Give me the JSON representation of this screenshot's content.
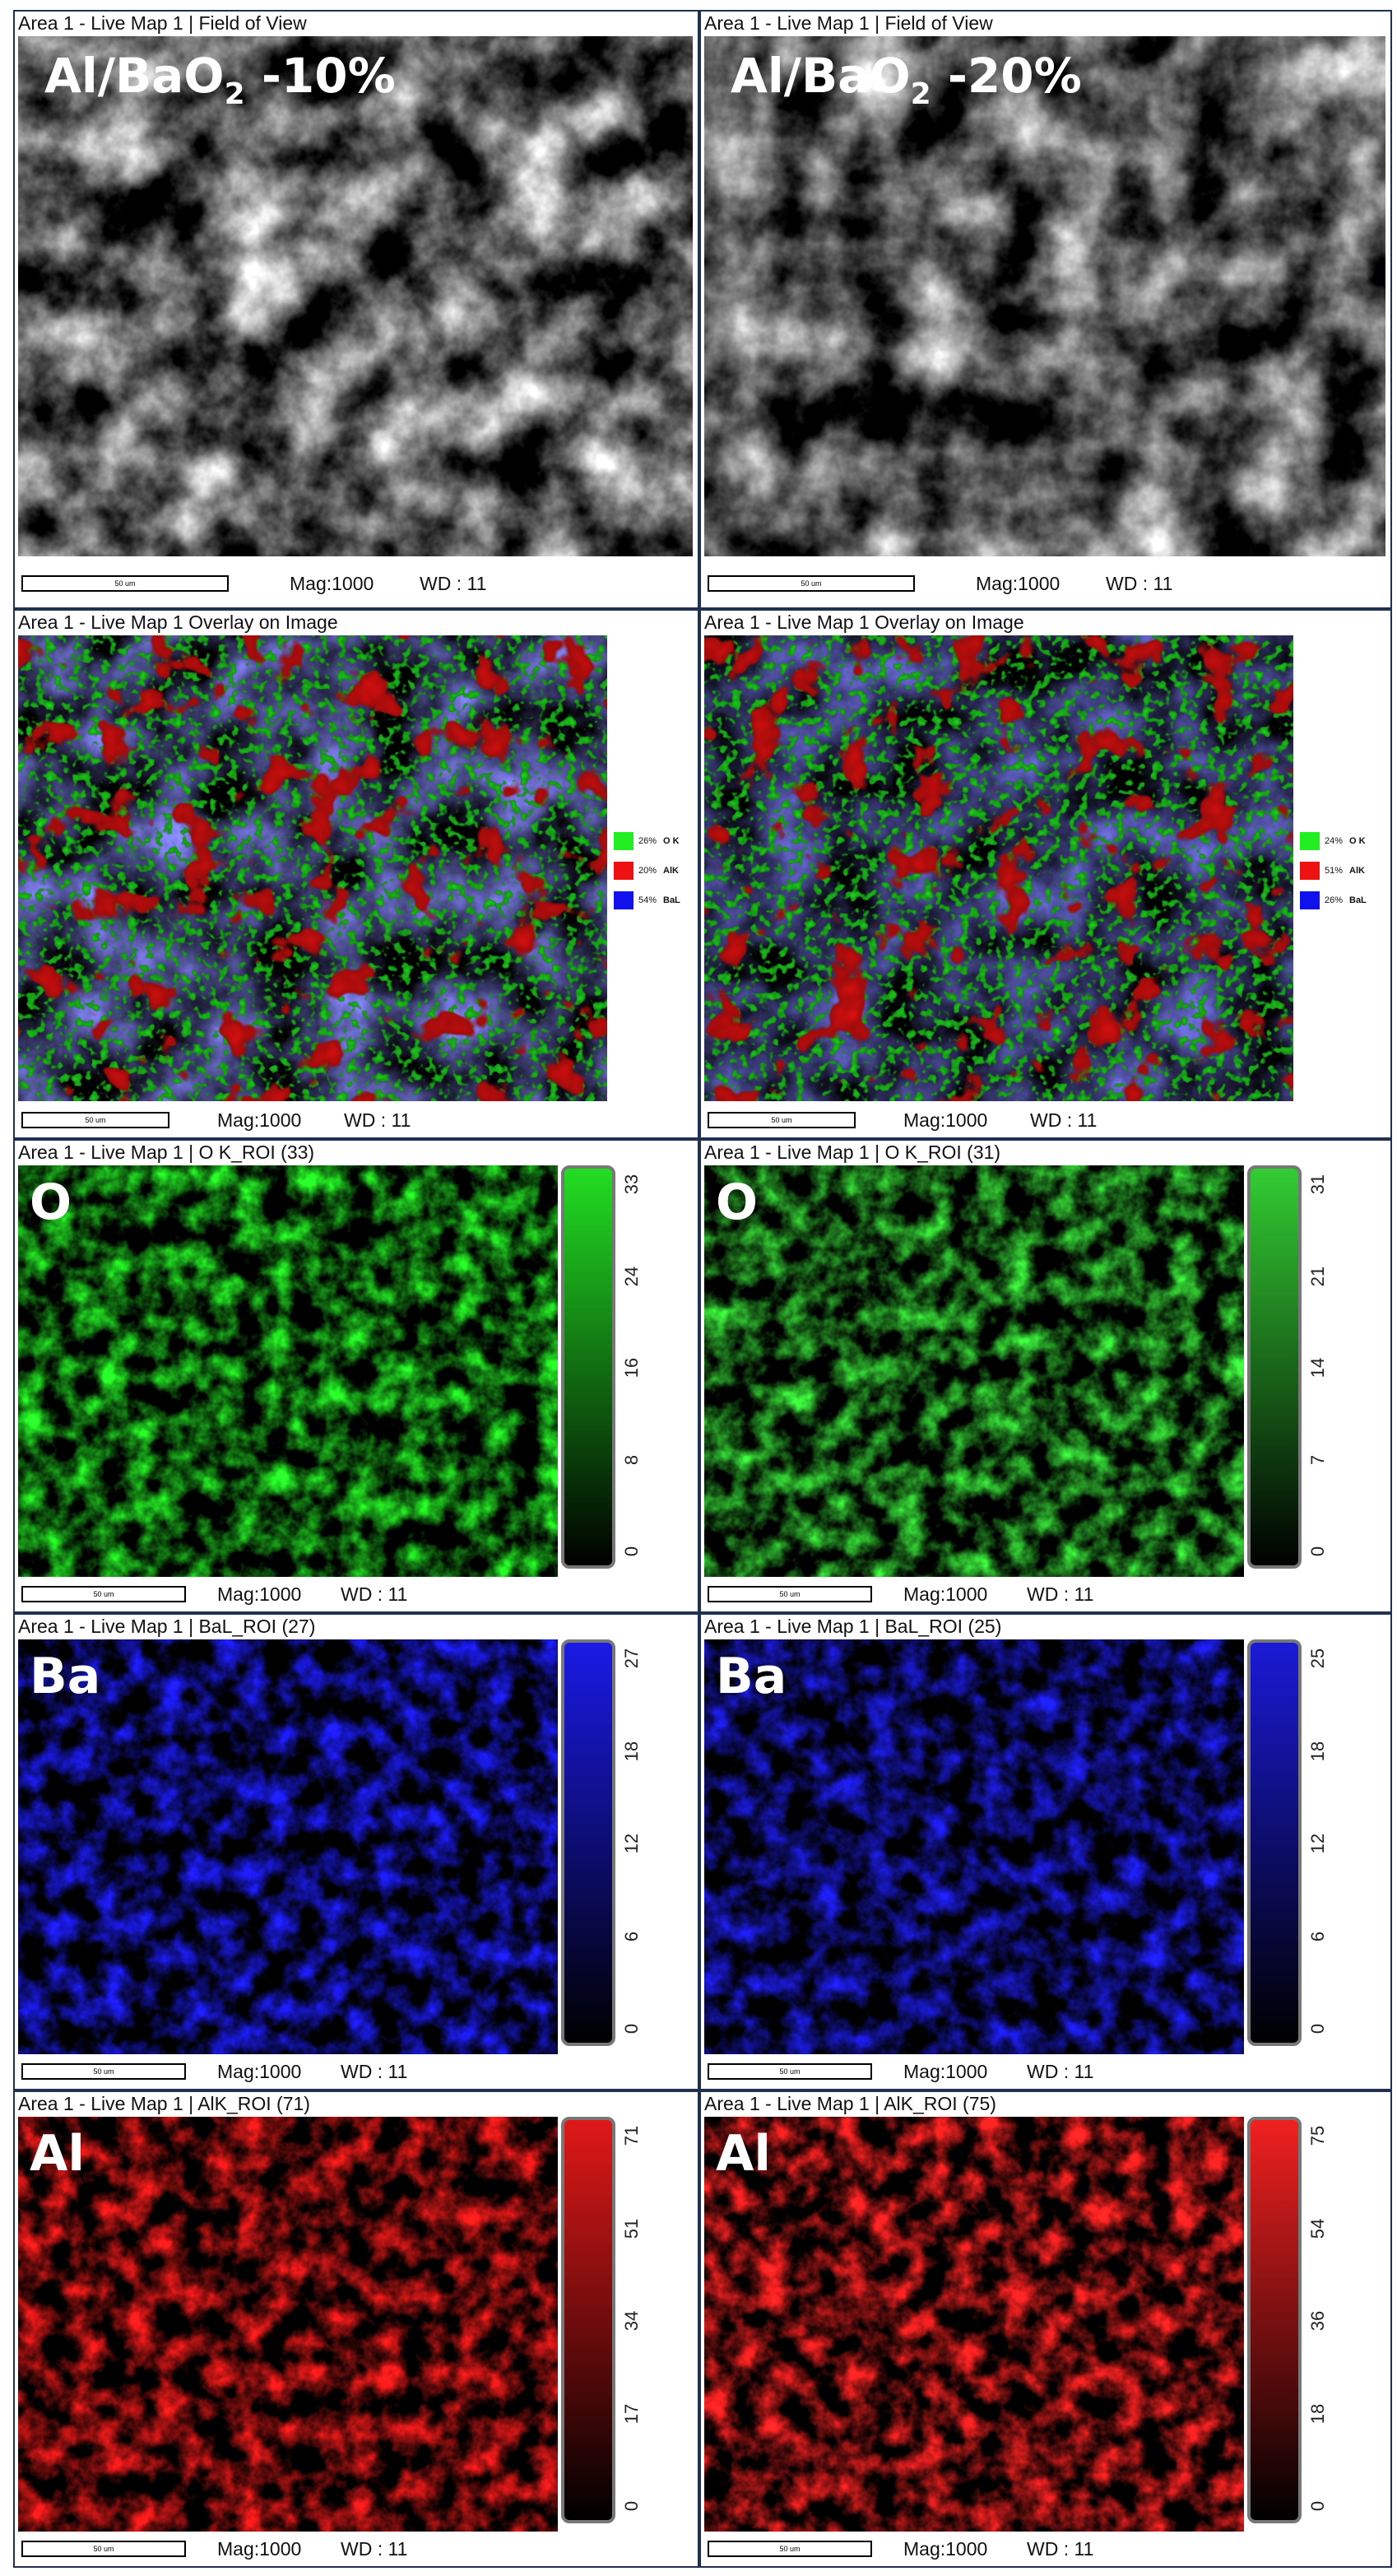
{
  "panels": [
    {
      "kind": "fov",
      "header": "Area 1 - Live Map 1 | Field of View",
      "label": {
        "main": "Al/BaO",
        "sub": "2",
        "tail": " -10%"
      },
      "color": "#d2d2d2",
      "scale_bar": "50 um",
      "mag": "Mag:1000",
      "wd": "WD : 11"
    },
    {
      "kind": "fov",
      "header": "Area 1 - Live Map 1 | Field of View",
      "label": {
        "main": "Al/BaO",
        "sub": "2",
        "tail": " -20%"
      },
      "color": "#bdbdbd",
      "scale_bar": "50 um",
      "mag": "Mag:1000",
      "wd": "WD : 11"
    },
    {
      "kind": "overlay",
      "header": "Area 1 - Live Map 1 Overlay on Image",
      "color": "#6a6ac8",
      "scale_bar": "50 um",
      "mag": "Mag:1000",
      "wd": "WD : 11",
      "legend": [
        {
          "pct": "26%",
          "name": "O K",
          "color": "#22ee22"
        },
        {
          "pct": "20%",
          "name": "AlK",
          "color": "#ee1111"
        },
        {
          "pct": "54%",
          "name": "BaL",
          "color": "#1111ee"
        }
      ]
    },
    {
      "kind": "overlay",
      "header": "Area 1 - Live Map 1 Overlay on Image",
      "color": "#5a5ab8",
      "scale_bar": "50 um",
      "mag": "Mag:1000",
      "wd": "WD : 11",
      "legend": [
        {
          "pct": "24%",
          "name": "O K",
          "color": "#22ee22"
        },
        {
          "pct": "51%",
          "name": "AlK",
          "color": "#ee1111"
        },
        {
          "pct": "26%",
          "name": "BaL",
          "color": "#1111ee"
        }
      ]
    },
    {
      "kind": "map",
      "header": "Area 1 - Live Map 1 | O K_ROI (33)",
      "label": "O",
      "color": "#22dd22",
      "scale_bar": "50 um",
      "mag": "Mag:1000",
      "wd": "WD : 11",
      "colorbar": {
        "ticks": [
          33,
          24,
          16,
          8,
          0
        ]
      }
    },
    {
      "kind": "map",
      "header": "Area 1 - Live Map 1 | O K_ROI (31)",
      "label": "O",
      "color": "#33cc33",
      "scale_bar": "50 um",
      "mag": "Mag:1000",
      "wd": "WD : 11",
      "colorbar": {
        "ticks": [
          31,
          21,
          14,
          7,
          0
        ]
      }
    },
    {
      "kind": "map",
      "header": "Area 1 - Live Map 1 | BaL_ROI (27)",
      "label": "Ba",
      "color": "#1a1ae6",
      "scale_bar": "50 um",
      "mag": "Mag:1000",
      "wd": "WD : 11",
      "colorbar": {
        "ticks": [
          27,
          18,
          12,
          6,
          0
        ]
      }
    },
    {
      "kind": "map",
      "header": "Area 1 - Live Map 1 | BaL_ROI (25)",
      "label": "Ba",
      "color": "#1a1ad6",
      "scale_bar": "50 um",
      "mag": "Mag:1000",
      "wd": "WD : 11",
      "colorbar": {
        "ticks": [
          25,
          18,
          12,
          6,
          0
        ]
      }
    },
    {
      "kind": "map",
      "header": "Area 1 - Live Map 1 | AlK_ROI (71)",
      "label": "Al",
      "color": "#e01818",
      "scale_bar": "50 um",
      "mag": "Mag:1000",
      "wd": "WD : 11",
      "colorbar": {
        "ticks": [
          71,
          51,
          34,
          17,
          0
        ]
      }
    },
    {
      "kind": "map",
      "header": "Area 1 - Live Map 1 | AlK_ROI (75)",
      "label": "Al",
      "color": "#f02020",
      "scale_bar": "50 um",
      "mag": "Mag:1000",
      "wd": "WD : 11",
      "colorbar": {
        "ticks": [
          75,
          54,
          36,
          18,
          0
        ]
      }
    }
  ]
}
